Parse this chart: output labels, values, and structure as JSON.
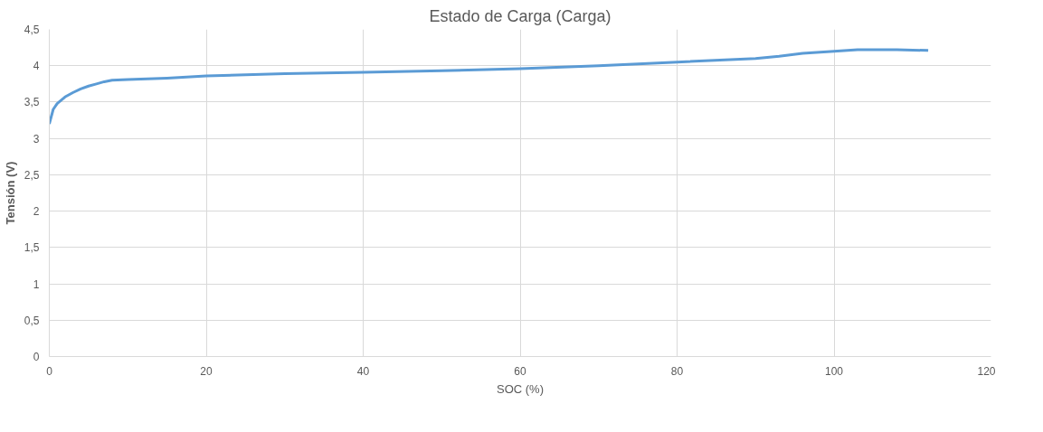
{
  "chart_data": {
    "type": "line",
    "title": "Estado de Carga (Carga)",
    "xlabel": "SOC (%)",
    "ylabel": "Tensión (V)",
    "series": [
      {
        "color": "#5b9bd5",
        "x": [
          0,
          0.5,
          1,
          2,
          3,
          4,
          5,
          6,
          7,
          8,
          10,
          15,
          20,
          30,
          40,
          50,
          60,
          70,
          80,
          90,
          93,
          96,
          100,
          103,
          108,
          112
        ],
        "values": [
          3.2,
          3.4,
          3.48,
          3.57,
          3.63,
          3.68,
          3.72,
          3.75,
          3.78,
          3.8,
          3.81,
          3.83,
          3.86,
          3.89,
          3.91,
          3.93,
          3.96,
          4.0,
          4.05,
          4.1,
          4.13,
          4.17,
          4.2,
          4.22,
          4.22,
          4.21
        ]
      }
    ],
    "xlim": [
      0,
      120
    ],
    "xticks": [
      0,
      20,
      40,
      60,
      80,
      100,
      120
    ],
    "ylim": [
      0,
      4.5
    ],
    "yticks": [
      0,
      {
        "value": 0.5,
        "label": "0,5"
      },
      1,
      {
        "value": 1.5,
        "label": "1,5"
      },
      2,
      {
        "value": 2.5,
        "label": "2,5"
      },
      3,
      {
        "value": 3.5,
        "label": "3,5"
      },
      4,
      {
        "value": 4.5,
        "label": "4,5"
      }
    ],
    "grid": true,
    "marker": "none",
    "line_style": "solid"
  }
}
